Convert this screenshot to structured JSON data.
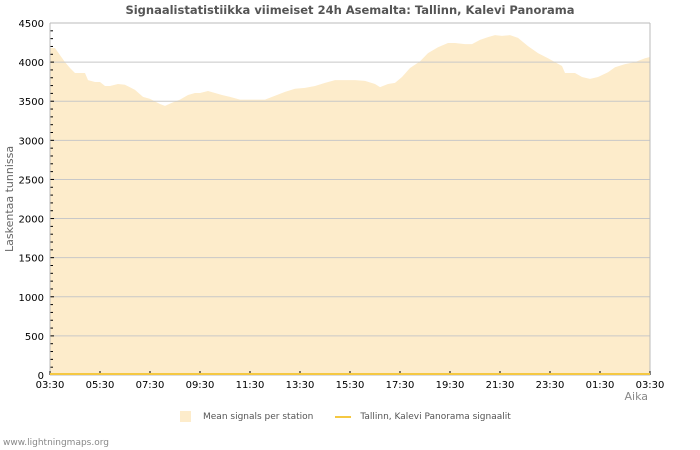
{
  "header": {
    "title": "Signaalistatistiikka viimeiset 24h Asemalta: Tallinn, Kalevi Panorama"
  },
  "axes": {
    "ylabel": "Laskentaa tunnissa",
    "xlabel": "Aika"
  },
  "legend": {
    "items": [
      {
        "label": "Mean signals per station",
        "type": "area",
        "color": "#fdeccb"
      },
      {
        "label": "Tallinn, Kalevi Panorama signaalit",
        "type": "line",
        "color": "#f5c842"
      }
    ]
  },
  "footer": {
    "credit": "www.lightningmaps.org"
  },
  "colors": {
    "area_fill": "#fdeccb",
    "line": "#f5c842",
    "grid": "#c8c8c8",
    "axis": "#bbbbbb",
    "text": "#555555"
  },
  "chart_data": {
    "type": "area",
    "title": "Signaalistatistiikka viimeiset 24h Asemalta: Tallinn, Kalevi Panorama",
    "xlabel": "Aika",
    "ylabel": "Laskentaa tunnissa",
    "ylim": [
      0,
      4500
    ],
    "yticks": [
      0,
      500,
      1000,
      1500,
      2000,
      2500,
      3000,
      3500,
      4000,
      4500
    ],
    "xticks": [
      "03:30",
      "05:30",
      "07:30",
      "09:30",
      "11:30",
      "13:30",
      "15:30",
      "17:30",
      "19:30",
      "21:30",
      "23:30",
      "01:30",
      "03:30"
    ],
    "grid": true,
    "legend_position": "bottom",
    "series": [
      {
        "name": "Mean signals per station",
        "type": "area",
        "x_hours": [
          0.2,
          0.4,
          0.6,
          0.8,
          1.0,
          1.4,
          1.52,
          1.8,
          2.0,
          2.2,
          2.4,
          2.72,
          3.0,
          3.4,
          3.72,
          4.0,
          4.4,
          4.6,
          4.88,
          5.2,
          5.52,
          5.8,
          6.0,
          6.32,
          6.6,
          6.88,
          7.2,
          7.6,
          8.2,
          8.6,
          9.0,
          9.4,
          9.8,
          10.2,
          10.6,
          11.0,
          11.4,
          12.2,
          12.6,
          13.0,
          13.2,
          13.52,
          13.8,
          14.08,
          14.4,
          14.8,
          15.12,
          15.52,
          15.92,
          16.2,
          16.6,
          16.88,
          17.2,
          17.52,
          17.8,
          18.08,
          18.4,
          18.72,
          19.12,
          19.52,
          19.92,
          20.2,
          20.48,
          20.6,
          21.0,
          21.28,
          21.6,
          21.92,
          22.32,
          22.6,
          23.0,
          23.4,
          23.8,
          24.0
        ],
        "values": [
          4180,
          4090,
          4000,
          3925,
          3860,
          3860,
          3770,
          3745,
          3745,
          3695,
          3695,
          3720,
          3710,
          3645,
          3555,
          3530,
          3465,
          3440,
          3480,
          3520,
          3580,
          3605,
          3605,
          3630,
          3605,
          3580,
          3555,
          3520,
          3520,
          3520,
          3570,
          3620,
          3660,
          3670,
          3695,
          3735,
          3770,
          3770,
          3760,
          3720,
          3680,
          3720,
          3735,
          3810,
          3925,
          4010,
          4115,
          4190,
          4245,
          4245,
          4230,
          4230,
          4285,
          4320,
          4345,
          4335,
          4345,
          4310,
          4205,
          4115,
          4050,
          4000,
          3950,
          3860,
          3860,
          3810,
          3785,
          3810,
          3870,
          3935,
          3975,
          4000,
          4050,
          4065
        ]
      },
      {
        "name": "Tallinn, Kalevi Panorama signaalit",
        "type": "line",
        "values_note": "flat at 0 across the full 24h range",
        "values": [
          0,
          0
        ]
      }
    ]
  }
}
